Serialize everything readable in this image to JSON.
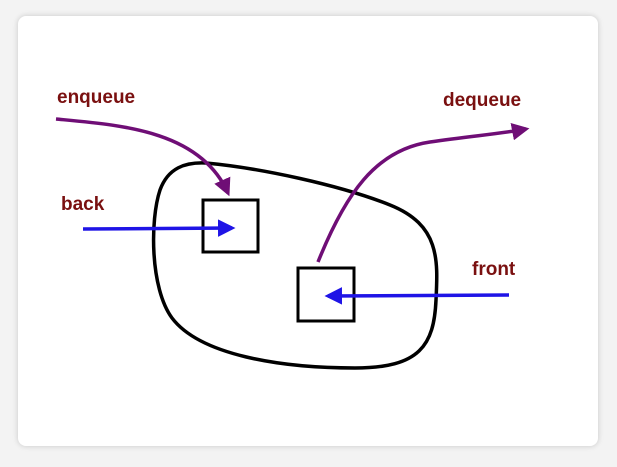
{
  "labels": {
    "enqueue": "enqueue",
    "dequeue": "dequeue",
    "back": "back",
    "front": "front"
  },
  "colors": {
    "label_text": "#7a1010",
    "operation_arrow": "#6f0e76",
    "pointer_arrow": "#1f14e6",
    "outline": "#000000",
    "background": "#ffffff"
  }
}
